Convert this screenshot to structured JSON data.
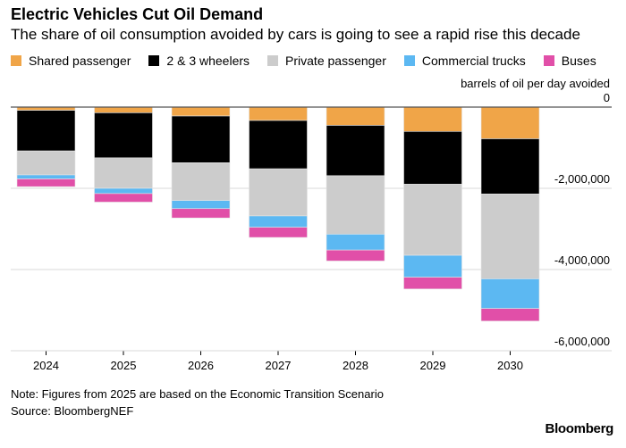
{
  "title": "Electric Vehicles Cut Oil Demand",
  "subtitle": "The share of oil consumption avoided by cars is going to see a rapid rise this decade",
  "note": "Note: Figures from 2025 are based on the Economic Transition Scenario",
  "source": "Source: BloombergNEF",
  "logo": "Bloomberg",
  "chart_data": {
    "type": "bar",
    "stacked": true,
    "ylabel": "barrels of oil per day avoided",
    "categories": [
      "2024",
      "2025",
      "2026",
      "2027",
      "2028",
      "2029",
      "2030"
    ],
    "ylim": [
      -6000000,
      0
    ],
    "yticks": [
      0,
      -2000000,
      -4000000,
      -6000000
    ],
    "ytick_labels": [
      "0",
      "-2,000,000",
      "-4,000,000",
      "-6,000,000"
    ],
    "grid": true,
    "legend_position": "top",
    "series": [
      {
        "name": "Shared passenger",
        "color": "#f0a548",
        "values": [
          -80000,
          -140000,
          -220000,
          -330000,
          -450000,
          -600000,
          -780000
        ]
      },
      {
        "name": "2 & 3 wheelers",
        "color": "#000000",
        "values": [
          -1000000,
          -1110000,
          -1150000,
          -1190000,
          -1240000,
          -1300000,
          -1360000
        ]
      },
      {
        "name": "Private passenger",
        "color": "#cccccc",
        "values": [
          -590000,
          -750000,
          -930000,
          -1160000,
          -1440000,
          -1750000,
          -2090000
        ]
      },
      {
        "name": "Commercial trucks",
        "color": "#5cb8f2",
        "values": [
          -100000,
          -130000,
          -200000,
          -280000,
          -390000,
          -540000,
          -730000
        ]
      },
      {
        "name": "Buses",
        "color": "#e14fa8",
        "values": [
          -190000,
          -210000,
          -230000,
          -250000,
          -270000,
          -290000,
          -310000
        ]
      }
    ]
  }
}
